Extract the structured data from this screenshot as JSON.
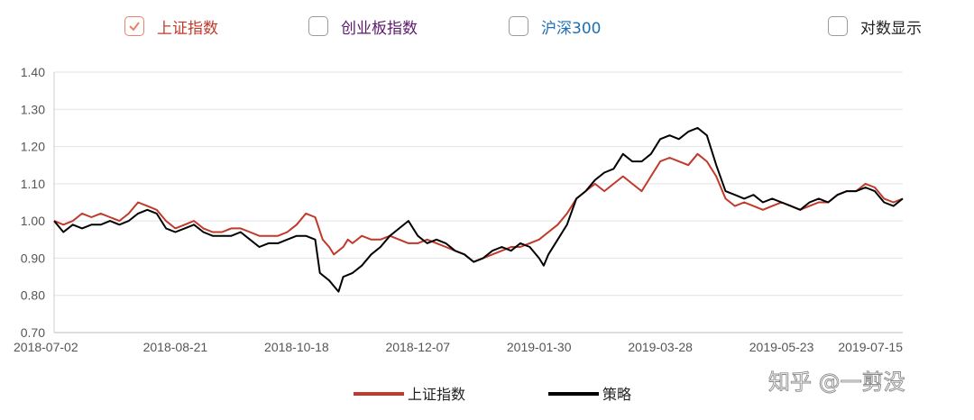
{
  "toggles": [
    {
      "label": "上证指数",
      "checked": true,
      "color": "#c0392b"
    },
    {
      "label": "创业板指数",
      "checked": false,
      "color": "#5b1a6b"
    },
    {
      "label": "沪深300",
      "checked": false,
      "color": "#1f6fb4"
    },
    {
      "label": "对数显示",
      "checked": false,
      "color": "#222222"
    }
  ],
  "watermark": "知乎 @一剪没",
  "chart_data": {
    "type": "line",
    "ylim": [
      0.7,
      1.4
    ],
    "yticks": [
      "0.70",
      "0.80",
      "0.90",
      "1.00",
      "1.10",
      "1.20",
      "1.30",
      "1.40"
    ],
    "xticks": [
      "2018-07-02",
      "2018-08-21",
      "2018-10-18",
      "2018-12-07",
      "2019-01-30",
      "2019-03-28",
      "2019-05-23",
      "2019-07-15"
    ],
    "grid": true,
    "legend_position": "bottom",
    "series": [
      {
        "name": "上证指数",
        "color": "#c0392b",
        "points": [
          [
            0,
            1.0
          ],
          [
            1,
            0.99
          ],
          [
            2,
            1.0
          ],
          [
            3,
            1.02
          ],
          [
            4,
            1.01
          ],
          [
            5,
            1.02
          ],
          [
            6,
            1.01
          ],
          [
            7,
            1.0
          ],
          [
            8,
            1.02
          ],
          [
            9,
            1.05
          ],
          [
            10,
            1.04
          ],
          [
            11,
            1.03
          ],
          [
            12,
            1.0
          ],
          [
            13,
            0.98
          ],
          [
            14,
            0.99
          ],
          [
            15,
            1.0
          ],
          [
            16,
            0.98
          ],
          [
            17,
            0.97
          ],
          [
            18,
            0.97
          ],
          [
            19,
            0.98
          ],
          [
            20,
            0.98
          ],
          [
            21,
            0.97
          ],
          [
            22,
            0.96
          ],
          [
            23,
            0.96
          ],
          [
            24,
            0.96
          ],
          [
            25,
            0.97
          ],
          [
            26,
            0.99
          ],
          [
            27,
            1.02
          ],
          [
            28,
            1.01
          ],
          [
            28.8,
            0.95
          ],
          [
            29.5,
            0.93
          ],
          [
            30,
            0.91
          ],
          [
            31,
            0.93
          ],
          [
            31.5,
            0.95
          ],
          [
            32,
            0.94
          ],
          [
            33,
            0.96
          ],
          [
            34,
            0.95
          ],
          [
            35,
            0.95
          ],
          [
            36,
            0.96
          ],
          [
            37,
            0.95
          ],
          [
            38,
            0.94
          ],
          [
            39,
            0.94
          ],
          [
            40,
            0.95
          ],
          [
            41,
            0.94
          ],
          [
            42,
            0.93
          ],
          [
            43,
            0.92
          ],
          [
            44,
            0.91
          ],
          [
            45,
            0.89
          ],
          [
            46,
            0.9
          ],
          [
            47,
            0.91
          ],
          [
            48,
            0.92
          ],
          [
            49,
            0.93
          ],
          [
            50,
            0.93
          ],
          [
            51,
            0.94
          ],
          [
            52,
            0.95
          ],
          [
            53,
            0.97
          ],
          [
            54,
            0.99
          ],
          [
            55,
            1.02
          ],
          [
            56,
            1.06
          ],
          [
            57,
            1.08
          ],
          [
            58,
            1.1
          ],
          [
            59,
            1.08
          ],
          [
            60,
            1.1
          ],
          [
            61,
            1.12
          ],
          [
            62,
            1.1
          ],
          [
            63,
            1.08
          ],
          [
            64,
            1.12
          ],
          [
            65,
            1.16
          ],
          [
            66,
            1.17
          ],
          [
            67,
            1.16
          ],
          [
            68,
            1.15
          ],
          [
            69,
            1.18
          ],
          [
            70,
            1.16
          ],
          [
            71,
            1.12
          ],
          [
            72,
            1.06
          ],
          [
            73,
            1.04
          ],
          [
            74,
            1.05
          ],
          [
            75,
            1.04
          ],
          [
            76,
            1.03
          ],
          [
            77,
            1.04
          ],
          [
            78,
            1.05
          ],
          [
            79,
            1.04
          ],
          [
            80,
            1.03
          ],
          [
            81,
            1.04
          ],
          [
            82,
            1.05
          ],
          [
            83,
            1.05
          ],
          [
            84,
            1.07
          ],
          [
            85,
            1.08
          ],
          [
            86,
            1.08
          ],
          [
            87,
            1.1
          ],
          [
            88,
            1.09
          ],
          [
            89,
            1.06
          ],
          [
            90,
            1.05
          ],
          [
            91,
            1.06
          ]
        ]
      },
      {
        "name": "策略",
        "color": "#000000",
        "points": [
          [
            0,
            1.0
          ],
          [
            1,
            0.97
          ],
          [
            2,
            0.99
          ],
          [
            3,
            0.98
          ],
          [
            4,
            0.99
          ],
          [
            5,
            0.99
          ],
          [
            6,
            1.0
          ],
          [
            7,
            0.99
          ],
          [
            8,
            1.0
          ],
          [
            9,
            1.02
          ],
          [
            10,
            1.03
          ],
          [
            11,
            1.02
          ],
          [
            12,
            0.98
          ],
          [
            13,
            0.97
          ],
          [
            14,
            0.98
          ],
          [
            15,
            0.99
          ],
          [
            16,
            0.97
          ],
          [
            17,
            0.96
          ],
          [
            18,
            0.96
          ],
          [
            19,
            0.96
          ],
          [
            20,
            0.97
          ],
          [
            21,
            0.95
          ],
          [
            22,
            0.93
          ],
          [
            23,
            0.94
          ],
          [
            24,
            0.94
          ],
          [
            25,
            0.95
          ],
          [
            26,
            0.96
          ],
          [
            27,
            0.96
          ],
          [
            28,
            0.95
          ],
          [
            28.5,
            0.86
          ],
          [
            29.5,
            0.84
          ],
          [
            30.5,
            0.81
          ],
          [
            31,
            0.85
          ],
          [
            32,
            0.86
          ],
          [
            33,
            0.88
          ],
          [
            34,
            0.91
          ],
          [
            35,
            0.93
          ],
          [
            36,
            0.96
          ],
          [
            37,
            0.98
          ],
          [
            38,
            1.0
          ],
          [
            39,
            0.96
          ],
          [
            40,
            0.94
          ],
          [
            41,
            0.95
          ],
          [
            42,
            0.94
          ],
          [
            43,
            0.92
          ],
          [
            44,
            0.91
          ],
          [
            45,
            0.89
          ],
          [
            46,
            0.9
          ],
          [
            47,
            0.92
          ],
          [
            48,
            0.93
          ],
          [
            49,
            0.92
          ],
          [
            50,
            0.94
          ],
          [
            51,
            0.93
          ],
          [
            52,
            0.9
          ],
          [
            52.5,
            0.88
          ],
          [
            53,
            0.91
          ],
          [
            54,
            0.95
          ],
          [
            55,
            0.99
          ],
          [
            56,
            1.06
          ],
          [
            57,
            1.08
          ],
          [
            58,
            1.11
          ],
          [
            59,
            1.13
          ],
          [
            60,
            1.14
          ],
          [
            61,
            1.18
          ],
          [
            62,
            1.16
          ],
          [
            63,
            1.16
          ],
          [
            64,
            1.18
          ],
          [
            65,
            1.22
          ],
          [
            66,
            1.23
          ],
          [
            67,
            1.22
          ],
          [
            68,
            1.24
          ],
          [
            69,
            1.25
          ],
          [
            70,
            1.23
          ],
          [
            71,
            1.15
          ],
          [
            72,
            1.08
          ],
          [
            73,
            1.07
          ],
          [
            74,
            1.06
          ],
          [
            75,
            1.07
          ],
          [
            76,
            1.05
          ],
          [
            77,
            1.06
          ],
          [
            78,
            1.05
          ],
          [
            79,
            1.04
          ],
          [
            80,
            1.03
          ],
          [
            81,
            1.05
          ],
          [
            82,
            1.06
          ],
          [
            83,
            1.05
          ],
          [
            84,
            1.07
          ],
          [
            85,
            1.08
          ],
          [
            86,
            1.08
          ],
          [
            87,
            1.09
          ],
          [
            88,
            1.08
          ],
          [
            89,
            1.05
          ],
          [
            90,
            1.04
          ],
          [
            91,
            1.06
          ]
        ]
      }
    ]
  }
}
